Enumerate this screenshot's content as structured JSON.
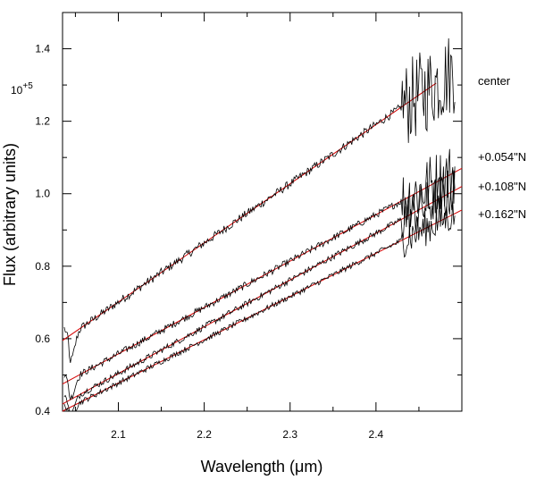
{
  "chart_data": {
    "type": "line",
    "xlabel": "Wavelength (μm)",
    "ylabel": "Flux (arbitrary units)",
    "y_multiplier_label": "10",
    "y_multiplier_exp": "+5",
    "xlim": [
      2.035,
      2.5
    ],
    "ylim": [
      0.4,
      1.5
    ],
    "x_ticks": [
      2.1,
      2.2,
      2.3,
      2.4
    ],
    "x_tick_labels": [
      "2.1",
      "2.2",
      "2.3",
      "2.4"
    ],
    "y_ticks": [
      0.4,
      0.6,
      0.8,
      1.0,
      1.2,
      1.4
    ],
    "y_tick_labels": [
      "0.4",
      "0.6",
      "0.8",
      "1.0",
      "1.2",
      "1.4"
    ],
    "grid": false,
    "fit_color": "#d40000",
    "data_color": "#000000",
    "series": [
      {
        "name": "center",
        "label": "center",
        "fit_start": [
          2.035,
          0.595
        ],
        "fit_end": [
          2.47,
          1.305
        ],
        "noise": 0.012,
        "high_noise": 0.12,
        "dip": 0.07
      },
      {
        "name": "0.054N",
        "label": "+0.054\"N",
        "fit_start": [
          2.035,
          0.475
        ],
        "fit_end": [
          2.5,
          1.07
        ],
        "noise": 0.01,
        "high_noise": 0.09,
        "dip": 0.05
      },
      {
        "name": "0.108N",
        "label": "+0.108\"N",
        "fit_start": [
          2.035,
          0.42
        ],
        "fit_end": [
          2.5,
          1.02
        ],
        "noise": 0.009,
        "high_noise": 0.07,
        "dip": 0.04
      },
      {
        "name": "0.162N",
        "label": "+0.162\"N",
        "fit_start": [
          2.035,
          0.4
        ],
        "fit_end": [
          2.5,
          0.955
        ],
        "noise": 0.008,
        "high_noise": 0.05,
        "dip": 0.03
      }
    ]
  }
}
